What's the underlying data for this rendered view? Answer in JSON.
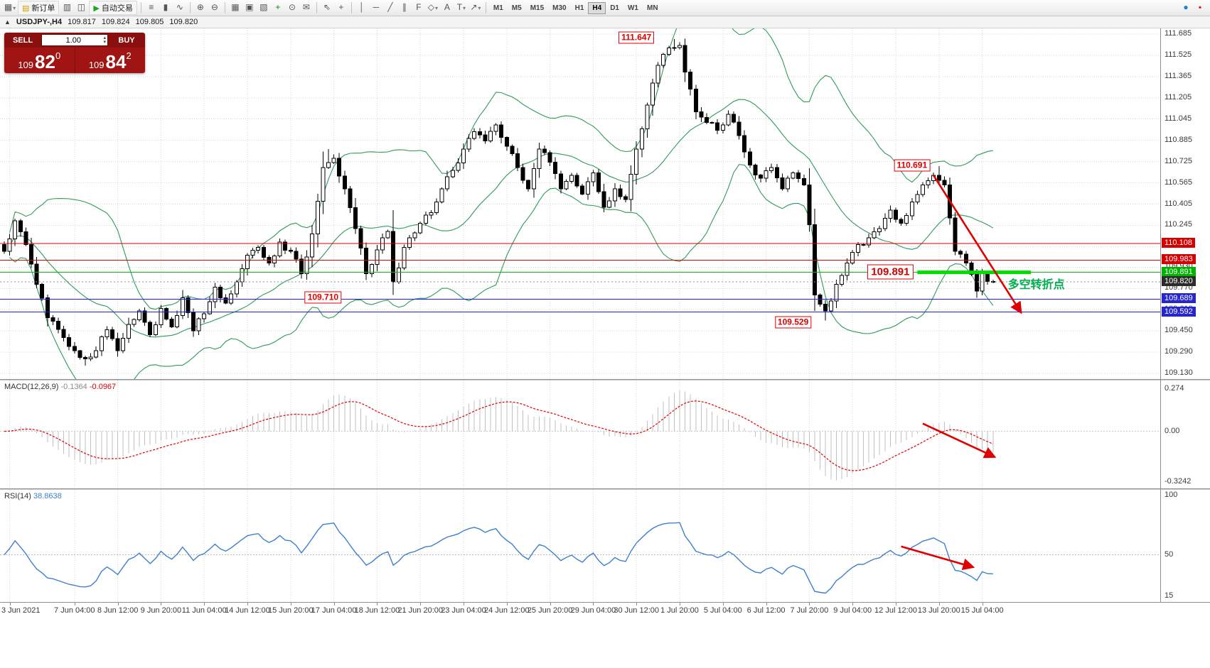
{
  "toolbar": {
    "items": [
      {
        "type": "icon",
        "name": "chart-window-icon",
        "glyph": "▦",
        "caret": true
      },
      {
        "type": "button",
        "name": "new-order-button",
        "label": "新订单",
        "glyph": "▤",
        "glyph_color": "#cf9f00"
      },
      {
        "type": "icon",
        "name": "profiles-icon",
        "glyph": "▥"
      },
      {
        "type": "icon",
        "name": "market-watch-icon",
        "glyph": "◫"
      },
      {
        "type": "button",
        "name": "autotrading-button",
        "label": "自动交易",
        "glyph": "▶",
        "glyph_color": "#1ea51e"
      },
      {
        "type": "sep"
      },
      {
        "type": "icon",
        "name": "bar-chart-type-icon",
        "glyph": "≡"
      },
      {
        "type": "icon",
        "name": "candlestick-type-icon",
        "glyph": "▮"
      },
      {
        "type": "icon",
        "name": "line-chart-type-icon",
        "glyph": "∿"
      },
      {
        "type": "sep"
      },
      {
        "type": "icon",
        "name": "zoom-in-icon",
        "glyph": "⊕"
      },
      {
        "type": "icon",
        "name": "zoom-out-icon",
        "glyph": "⊖"
      },
      {
        "type": "sep"
      },
      {
        "type": "icon",
        "name": "tile-windows-icon",
        "glyph": "▦"
      },
      {
        "type": "icon",
        "name": "data-window-icon",
        "glyph": "▣"
      },
      {
        "type": "icon",
        "name": "navigator-icon",
        "glyph": "▧"
      },
      {
        "type": "icon",
        "name": "indicators-add-icon",
        "glyph": "+",
        "color": "#0a8f0a"
      },
      {
        "type": "icon",
        "name": "period-cycle-icon",
        "glyph": "⊙"
      },
      {
        "type": "icon",
        "name": "template-icon",
        "glyph": "✉"
      },
      {
        "type": "sep"
      },
      {
        "type": "icon",
        "name": "cursor-icon",
        "glyph": "⇖"
      },
      {
        "type": "icon",
        "name": "crosshair-icon",
        "glyph": "+"
      },
      {
        "type": "sep"
      },
      {
        "type": "icon",
        "name": "vertical-line-icon",
        "glyph": "│"
      },
      {
        "type": "icon",
        "name": "horizontal-line-icon",
        "glyph": "─"
      },
      {
        "type": "icon",
        "name": "trendline-icon",
        "glyph": "╱"
      },
      {
        "type": "icon",
        "name": "channel-icon",
        "glyph": "∥"
      },
      {
        "type": "icon",
        "name": "fibonacci-icon",
        "glyph": "F"
      },
      {
        "type": "icon",
        "name": "shapes-icon",
        "glyph": "◇",
        "caret": true
      },
      {
        "type": "icon",
        "name": "text-icon",
        "glyph": "A"
      },
      {
        "type": "icon",
        "name": "label-icon",
        "glyph": "T",
        "caret": true
      },
      {
        "type": "icon",
        "name": "arrows-icon",
        "glyph": "↗",
        "caret": true
      },
      {
        "type": "sep"
      },
      {
        "type": "tf"
      }
    ],
    "timeframes": [
      "M1",
      "M5",
      "M15",
      "M30",
      "H1",
      "H4",
      "D1",
      "W1",
      "MN"
    ],
    "active_timeframe": "H4",
    "right_items": [
      {
        "name": "notifications-icon",
        "glyph": "●",
        "color": "#1f7fd6"
      },
      {
        "name": "alert-icon",
        "glyph": "▪",
        "color": "#cf2020"
      }
    ]
  },
  "symbol_bar": {
    "toggle": "▲",
    "symbol": "USDJPY-,H4",
    "open": "109.817",
    "high": "109.824",
    "low": "109.805",
    "close": "109.820"
  },
  "trade_panel": {
    "sell_label": "SELL",
    "buy_label": "BUY",
    "volume": "1.00",
    "spin_up": "▴",
    "spin_down": "▾",
    "sell_price": {
      "base": "109",
      "big": "82",
      "sup": "0"
    },
    "buy_price": {
      "base": "109",
      "big": "84",
      "sup": "2"
    }
  },
  "chart_data": {
    "type": "candlestick",
    "symbol": "USDJPY",
    "timeframe": "H4",
    "ylim": [
      109.13,
      111.685
    ],
    "price_axis_labels": [
      "111.685",
      "111.525",
      "111.365",
      "111.205",
      "111.045",
      "110.885",
      "110.725",
      "110.565",
      "110.405",
      "110.245",
      "110.085",
      "109.930",
      "109.770",
      "109.610",
      "109.450",
      "109.290",
      "109.130"
    ],
    "price_tags": [
      {
        "text": "110.108",
        "price": 110.108,
        "bg": "#d40000"
      },
      {
        "text": "109.983",
        "price": 109.983,
        "bg": "#d40000"
      },
      {
        "text": "109.891",
        "price": 109.891,
        "bg": "#00b300"
      },
      {
        "text": "109.820",
        "price": 109.82,
        "bg": "#2b2b2b"
      },
      {
        "text": "109.689",
        "price": 109.689,
        "bg": "#2626cc"
      },
      {
        "text": "109.592",
        "price": 109.592,
        "bg": "#2626cc"
      }
    ],
    "time_labels": [
      {
        "i": 1,
        "t": "3 Jun 2021"
      },
      {
        "i": 13,
        "t": "7 Jun 04:00"
      },
      {
        "i": 21,
        "t": "8 Jun 12:00"
      },
      {
        "i": 29,
        "t": "9 Jun 20:00"
      },
      {
        "i": 37,
        "t": "11 Jun 04:00"
      },
      {
        "i": 45,
        "t": "14 Jun 12:00"
      },
      {
        "i": 53,
        "t": "15 Jun 20:00"
      },
      {
        "i": 61,
        "t": "17 Jun 04:00"
      },
      {
        "i": 69,
        "t": "18 Jun 12:00"
      },
      {
        "i": 77,
        "t": "21 Jun 20:00"
      },
      {
        "i": 85,
        "t": "23 Jun 04:00"
      },
      {
        "i": 93,
        "t": "24 Jun 12:00"
      },
      {
        "i": 101,
        "t": "25 Jun 20:00"
      },
      {
        "i": 109,
        "t": "29 Jun 04:00"
      },
      {
        "i": 117,
        "t": "30 Jun 12:00"
      },
      {
        "i": 125,
        "t": "1 Jul 20:00"
      },
      {
        "i": 133,
        "t": "5 Jul 04:00"
      },
      {
        "i": 141,
        "t": "6 Jul 12:00"
      },
      {
        "i": 149,
        "t": "7 Jul 20:00"
      },
      {
        "i": 157,
        "t": "9 Jul 04:00"
      },
      {
        "i": 165,
        "t": "12 Jul 12:00"
      },
      {
        "i": 173,
        "t": "13 Jul 20:00"
      },
      {
        "i": 181,
        "t": "15 Jul 04:00"
      }
    ],
    "swings": [
      [
        0,
        110.05
      ],
      [
        2,
        110.28
      ],
      [
        4,
        110.1
      ],
      [
        6,
        109.8
      ],
      [
        8,
        109.55
      ],
      [
        11,
        109.4
      ],
      [
        13,
        109.3
      ],
      [
        15,
        109.24
      ],
      [
        17,
        109.3
      ],
      [
        19,
        109.46
      ],
      [
        21,
        109.3
      ],
      [
        23,
        109.5
      ],
      [
        25,
        109.6
      ],
      [
        27,
        109.42
      ],
      [
        29,
        109.62
      ],
      [
        31,
        109.48
      ],
      [
        33,
        109.7
      ],
      [
        35,
        109.45
      ],
      [
        37,
        109.58
      ],
      [
        39,
        109.78
      ],
      [
        41,
        109.66
      ],
      [
        43,
        109.82
      ],
      [
        45,
        110.02
      ],
      [
        47,
        110.08
      ],
      [
        49,
        109.96
      ],
      [
        51,
        110.12
      ],
      [
        53,
        110.05
      ],
      [
        55,
        109.88
      ],
      [
        57,
        110.18
      ],
      [
        59,
        110.68
      ],
      [
        61,
        110.75
      ],
      [
        63,
        110.52
      ],
      [
        65,
        110.22
      ],
      [
        67,
        109.88
      ],
      [
        69,
        110.06
      ],
      [
        71,
        110.2
      ],
      [
        72,
        109.82
      ],
      [
        74,
        110.08
      ],
      [
        77,
        110.26
      ],
      [
        79,
        110.34
      ],
      [
        81,
        110.52
      ],
      [
        83,
        110.66
      ],
      [
        85,
        110.82
      ],
      [
        87,
        110.95
      ],
      [
        89,
        110.88
      ],
      [
        91,
        111.0
      ],
      [
        93,
        110.84
      ],
      [
        95,
        110.68
      ],
      [
        97,
        110.52
      ],
      [
        99,
        110.82
      ],
      [
        101,
        110.72
      ],
      [
        103,
        110.52
      ],
      [
        105,
        110.62
      ],
      [
        107,
        110.48
      ],
      [
        109,
        110.64
      ],
      [
        111,
        110.38
      ],
      [
        113,
        110.52
      ],
      [
        115,
        110.44
      ],
      [
        117,
        110.82
      ],
      [
        119,
        111.15
      ],
      [
        121,
        111.45
      ],
      [
        123,
        111.58
      ],
      [
        125,
        111.6
      ],
      [
        126,
        111.4
      ],
      [
        128,
        111.1
      ],
      [
        130,
        111.02
      ],
      [
        132,
        110.96
      ],
      [
        134,
        111.08
      ],
      [
        136,
        110.92
      ],
      [
        138,
        110.7
      ],
      [
        140,
        110.6
      ],
      [
        142,
        110.68
      ],
      [
        144,
        110.52
      ],
      [
        146,
        110.64
      ],
      [
        148,
        110.55
      ],
      [
        149,
        110.25
      ],
      [
        150,
        109.72
      ],
      [
        152,
        109.6
      ],
      [
        154,
        109.8
      ],
      [
        156,
        109.96
      ],
      [
        158,
        110.1
      ],
      [
        160,
        110.15
      ],
      [
        162,
        110.22
      ],
      [
        164,
        110.36
      ],
      [
        166,
        110.26
      ],
      [
        168,
        110.42
      ],
      [
        170,
        110.55
      ],
      [
        172,
        110.62
      ],
      [
        174,
        110.55
      ],
      [
        175,
        110.3
      ],
      [
        176,
        110.05
      ],
      [
        178,
        109.96
      ],
      [
        180,
        109.75
      ],
      [
        181,
        109.88
      ],
      [
        183,
        109.82
      ]
    ],
    "extremes": [
      {
        "i": 15,
        "low": 109.19
      },
      {
        "i": 60,
        "high": 110.82
      },
      {
        "i": 72,
        "low": 109.72
      },
      {
        "i": 124,
        "high": 111.647
      },
      {
        "i": 150,
        "low": 109.6
      },
      {
        "i": 152,
        "low": 109.529
      },
      {
        "i": 173,
        "high": 110.691
      },
      {
        "i": 180,
        "low": 109.7
      }
    ],
    "bollinger": {
      "period": 20,
      "deviation": 2,
      "color": "#2e9b57"
    },
    "levels": [
      {
        "price": 110.108,
        "color": "#e00000"
      },
      {
        "price": 109.983,
        "color": "#e00000"
      },
      {
        "price": 109.891,
        "color": "#00c000"
      },
      {
        "price": 109.689,
        "color": "#2020dd"
      },
      {
        "price": 109.592,
        "color": "#2020dd"
      }
    ],
    "current_price_line": {
      "price": 109.82,
      "color": "#909090"
    },
    "thick_level": {
      "price": 109.891,
      "i1": 169,
      "i2": 190,
      "color": "#00dd00",
      "width": 5
    },
    "notes": [
      {
        "i": 117,
        "p": 111.66,
        "text": "111.647",
        "style": "box"
      },
      {
        "i": 168,
        "p": 110.697,
        "text": "110.691",
        "style": "box"
      },
      {
        "i": 164,
        "p": 109.895,
        "text": "109.891",
        "style": "big"
      },
      {
        "i": 59,
        "p": 109.704,
        "text": "109.710",
        "style": "box"
      },
      {
        "i": 146,
        "p": 109.513,
        "text": "109.529",
        "style": "box"
      },
      {
        "i": 191,
        "p": 109.81,
        "text": "多空转折点",
        "style": "cn"
      }
    ],
    "arrows": {
      "main": {
        "i1": 172,
        "p1": 110.62,
        "i2": 188,
        "p2": 109.6
      },
      "macd": {
        "i1": 170,
        "v1": 0.05,
        "i2": 183,
        "v2": -0.16
      },
      "rsi": {
        "i1": 166,
        "v1": 57,
        "i2": 179,
        "v2": 40
      }
    },
    "indicators": {
      "macd": {
        "label": "MACD(12,26,9)",
        "value_main": "-0.1364",
        "value_signal": "-0.0967",
        "axis": [
          "0.274",
          "0.00",
          "-0.3242"
        ],
        "axis_values": [
          0.274,
          0,
          -0.3242
        ],
        "histogram_color": "#c0c0c0",
        "signal_color": "#e00000"
      },
      "rsi": {
        "label": "RSI(14)",
        "value": "38.8638",
        "axis": [
          "100",
          "50",
          "15"
        ],
        "axis_values": [
          100,
          50,
          15
        ],
        "line_color": "#3f7fce"
      }
    }
  }
}
